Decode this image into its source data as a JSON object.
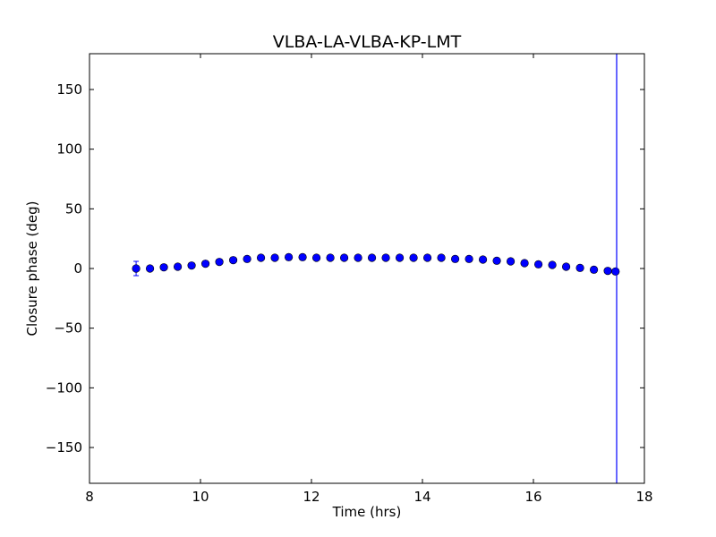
{
  "chart_data": {
    "type": "scatter",
    "title": "VLBA-LA-VLBA-KP-LMT",
    "xlabel": "Time (hrs)",
    "ylabel": "Closure phase (deg)",
    "xlim": [
      8,
      18
    ],
    "ylim": [
      -180,
      180
    ],
    "xticks": [
      "8",
      "10",
      "12",
      "14",
      "16",
      "18"
    ],
    "yticks": [
      "150",
      "100",
      "50",
      "0",
      "−50",
      "−100",
      "−150"
    ],
    "grid": false,
    "marker_color": "#0000ff",
    "x": [
      8.84,
      9.09,
      9.34,
      9.59,
      9.84,
      10.09,
      10.34,
      10.59,
      10.84,
      11.09,
      11.34,
      11.59,
      11.84,
      12.09,
      12.34,
      12.59,
      12.84,
      13.09,
      13.34,
      13.59,
      13.84,
      14.09,
      14.34,
      14.59,
      14.84,
      15.09,
      15.34,
      15.59,
      15.84,
      16.09,
      16.34,
      16.59,
      16.84,
      17.09,
      17.34,
      17.48
    ],
    "y": [
      0,
      0,
      1,
      1.5,
      2.5,
      4,
      5.5,
      7,
      8,
      9,
      9,
      9.5,
      9.5,
      9,
      9,
      9,
      9,
      9,
      9,
      9,
      9,
      9,
      9,
      8,
      8,
      7.5,
      6.5,
      6,
      4.5,
      3.5,
      3,
      1.5,
      0.5,
      -1,
      -2,
      -2.5
    ],
    "yerr": [
      6,
      1,
      1,
      1,
      1,
      1,
      1,
      1,
      1,
      1,
      1,
      1,
      1,
      1,
      1,
      1,
      1,
      1,
      1,
      1,
      1,
      1,
      1,
      1,
      1,
      1,
      1,
      1,
      1,
      1,
      1,
      1,
      1,
      1,
      1,
      1
    ],
    "vline_x": 17.5
  }
}
